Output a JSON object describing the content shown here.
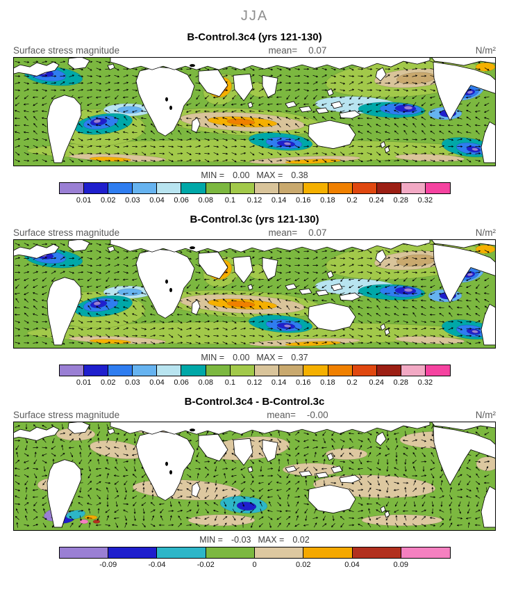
{
  "season": "JJA",
  "panels": [
    {
      "title": "B-Control.3c4 (yrs 121-130)",
      "field_label": "Surface stress magnitude",
      "mean_label": "mean=",
      "mean_value": "0.07",
      "unit": "N/m²",
      "min_label": "MIN =",
      "min_value": "0.00",
      "max_label": "MAX =",
      "max_value": "0.38",
      "colorbar": {
        "colors": [
          "#9a7fd4",
          "#1f1fcd",
          "#2f7df0",
          "#66b3f0",
          "#b8e4f0",
          "#00a8a8",
          "#7cb840",
          "#a2c94a",
          "#d9c49a",
          "#c9a96e",
          "#f5b000",
          "#f08000",
          "#e04810",
          "#9c1f14",
          "#f2a9c4",
          "#f543a0"
        ],
        "labels": [
          "0.01",
          "0.02",
          "0.03",
          "0.04",
          "0.06",
          "0.08",
          "0.1",
          "0.12",
          "0.14",
          "0.16",
          "0.18",
          "0.2",
          "0.24",
          "0.28",
          "0.32"
        ]
      }
    },
    {
      "title": "B-Control.3c (yrs 121-130)",
      "field_label": "Surface stress magnitude",
      "mean_label": "mean=",
      "mean_value": "0.07",
      "unit": "N/m²",
      "min_label": "MIN =",
      "min_value": "0.00",
      "max_label": "MAX =",
      "max_value": "0.37",
      "colorbar": {
        "colors": [
          "#9a7fd4",
          "#1f1fcd",
          "#2f7df0",
          "#66b3f0",
          "#b8e4f0",
          "#00a8a8",
          "#7cb840",
          "#a2c94a",
          "#d9c49a",
          "#c9a96e",
          "#f5b000",
          "#f08000",
          "#e04810",
          "#9c1f14",
          "#f2a9c4",
          "#f543a0"
        ],
        "labels": [
          "0.01",
          "0.02",
          "0.03",
          "0.04",
          "0.06",
          "0.08",
          "0.1",
          "0.12",
          "0.14",
          "0.16",
          "0.18",
          "0.2",
          "0.24",
          "0.28",
          "0.32"
        ]
      }
    },
    {
      "title": "B-Control.3c4 - B-Control.3c",
      "field_label": "Surface stress magnitude",
      "mean_label": "mean=",
      "mean_value": "-0.00",
      "unit": "N/m²",
      "min_label": "MIN =",
      "min_value": "-0.03",
      "max_label": "MAX =",
      "max_value": "0.02",
      "colorbar": {
        "colors": [
          "#9a7fd4",
          "#1f1fcd",
          "#2db6c8",
          "#7cb840",
          "#ddc8a0",
          "#f5a800",
          "#b2301e",
          "#f580c0"
        ],
        "labels": [
          "-0.09",
          "-0.04",
          "-0.02",
          "0",
          "0.02",
          "0.04",
          "0.09"
        ]
      }
    }
  ],
  "chart_data": [
    {
      "type": "heatmap",
      "title": "B-Control.3c4 (yrs 121-130)",
      "variable": "Surface stress magnitude",
      "units": "N/m²",
      "season": "JJA",
      "mean": 0.07,
      "min": 0.0,
      "max": 0.38,
      "scale_boundaries": [
        0.01,
        0.02,
        0.03,
        0.04,
        0.06,
        0.08,
        0.1,
        0.12,
        0.14,
        0.16,
        0.18,
        0.2,
        0.24,
        0.28,
        0.32
      ],
      "overlay": "vector arrows"
    },
    {
      "type": "heatmap",
      "title": "B-Control.3c (yrs 121-130)",
      "variable": "Surface stress magnitude",
      "units": "N/m²",
      "season": "JJA",
      "mean": 0.07,
      "min": 0.0,
      "max": 0.37,
      "scale_boundaries": [
        0.01,
        0.02,
        0.03,
        0.04,
        0.06,
        0.08,
        0.1,
        0.12,
        0.14,
        0.16,
        0.18,
        0.2,
        0.24,
        0.28,
        0.32
      ],
      "overlay": "vector arrows"
    },
    {
      "type": "heatmap",
      "title": "B-Control.3c4 - B-Control.3c",
      "variable": "Surface stress magnitude difference",
      "units": "N/m²",
      "season": "JJA",
      "mean": -0.0,
      "min": -0.03,
      "max": 0.02,
      "scale_boundaries": [
        -0.09,
        -0.04,
        -0.02,
        0,
        0.02,
        0.04,
        0.09
      ],
      "overlay": "vector arrows"
    }
  ]
}
